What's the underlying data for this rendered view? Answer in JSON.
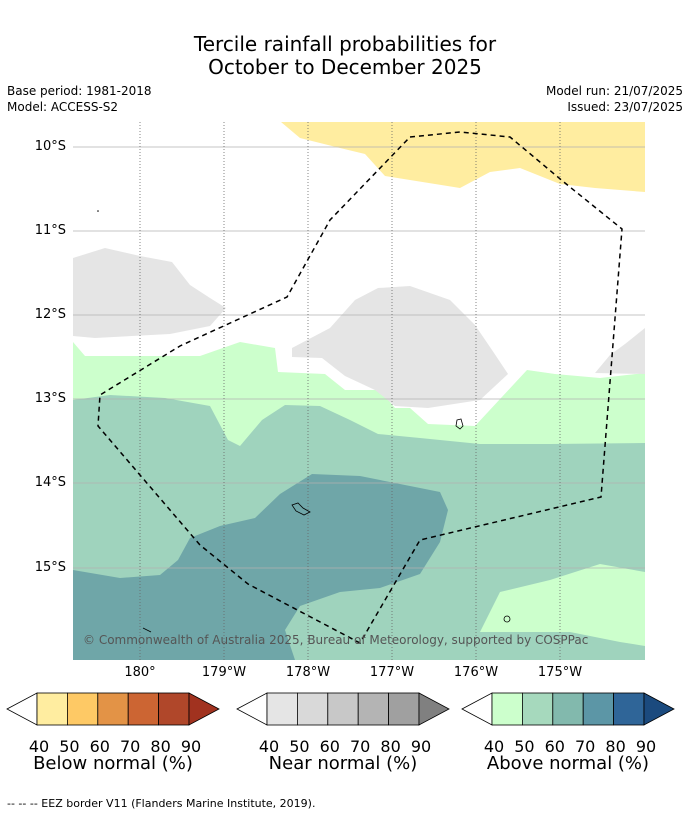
{
  "title": {
    "line1": "Tercile rainfall probabilities for",
    "line2": "October to December 2025"
  },
  "meta": {
    "base_period": "Base period: 1981-2018",
    "model": "Model: ACCESS-S2",
    "model_run": "Model run: 21/07/2025",
    "issued": "Issued: 23/07/2025"
  },
  "map": {
    "lat_labels": [
      "10°S",
      "11°S",
      "12°S",
      "13°S",
      "14°S",
      "15°S"
    ],
    "lon_labels": [
      "180°",
      "179°W",
      "178°W",
      "177°W",
      "176°W",
      "175°W"
    ],
    "copyright": "© Commonwealth of Australia 2025, Bureau of Meteorology, supported by COSPPac",
    "colors": {
      "below_50": "#ffeda0",
      "near_40": "#e5e5e5",
      "above_40": "#ccffcc",
      "above_50": "#9fd3bd",
      "above_60": "#6fa6a8",
      "eez": "#000000"
    }
  },
  "colorbars": {
    "tick_labels": [
      "40",
      "50",
      "60",
      "70",
      "80",
      "90"
    ],
    "below": {
      "caption": "Below normal (%)",
      "colors": [
        "#ffeda0",
        "#fec965",
        "#e39346",
        "#cc6533",
        "#b0472a",
        "#a1321f"
      ]
    },
    "near": {
      "caption": "Near normal (%)",
      "colors": [
        "#e5e5e5",
        "#d9d9d9",
        "#c8c8c8",
        "#b4b4b4",
        "#a0a0a0",
        "#808080"
      ]
    },
    "above": {
      "caption": "Above normal (%)",
      "colors": [
        "#ccffcc",
        "#a6d9bd",
        "#82b9ad",
        "#5c96a6",
        "#2f6598",
        "#1b4a7e"
      ]
    }
  },
  "footnote": "--  --  -- EEZ border V11 (Flanders Marine Institute, 2019)."
}
